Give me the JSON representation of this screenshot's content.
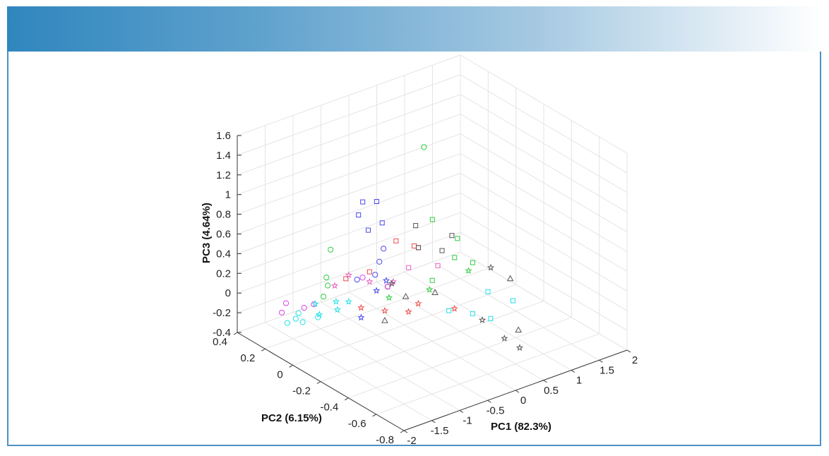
{
  "chart_data": {
    "type": "scatter3d",
    "title": "",
    "xlabel": "PC1 (82.3%)",
    "ylabel": "PC2 (6.15%)",
    "zlabel": "PC3 (4.64%)",
    "xlim": [
      -2,
      2
    ],
    "ylim": [
      -0.8,
      0.4
    ],
    "zlim": [
      -0.4,
      1.6
    ],
    "x_ticks": [
      "-2",
      "-1.5",
      "-1",
      "-0.5",
      "0",
      "0.5",
      "1",
      "1.5",
      "2"
    ],
    "y_ticks": [
      "-0.8",
      "-0.6",
      "-0.4",
      "-0.2",
      "0",
      "0.2",
      "0.4"
    ],
    "z_ticks": [
      "-0.4",
      "-0.2",
      "0",
      "0.2",
      "0.4",
      "0.6",
      "0.8",
      "1",
      "1.2",
      "1.4",
      "1.6"
    ],
    "grid": true,
    "colors": {
      "cyan": "#22e0e8",
      "magenta": "#e040e8",
      "green": "#2ecc40",
      "blue": "#4848ee",
      "red": "#f04848",
      "pink": "#e860c0",
      "gray": "#555555"
    },
    "groups": [
      {
        "marker": "circle",
        "color": "cyan",
        "points": [
          [
            -1.6,
            0.2,
            -0.22
          ],
          [
            -1.5,
            0.18,
            -0.18
          ],
          [
            -1.45,
            0.15,
            -0.2
          ],
          [
            -1.4,
            0.2,
            -0.16
          ],
          [
            -1.3,
            0.1,
            -0.14
          ]
        ]
      },
      {
        "marker": "circle",
        "color": "magenta",
        "points": [
          [
            -1.65,
            0.22,
            -0.12
          ],
          [
            -1.5,
            0.25,
            -0.08
          ],
          [
            -1.35,
            0.18,
            -0.1
          ],
          [
            -1.25,
            0.15,
            -0.06
          ],
          [
            -0.5,
            0.1,
            0.1
          ]
        ]
      },
      {
        "marker": "star",
        "color": "cyan",
        "points": [
          [
            -1.4,
            0.05,
            -0.05
          ],
          [
            -1.3,
            0.12,
            -0.02
          ],
          [
            -1.2,
            0.0,
            0.0
          ],
          [
            -1.1,
            0.05,
            0.02
          ],
          [
            -1.0,
            0.0,
            0.04
          ]
        ]
      },
      {
        "marker": "circle",
        "color": "green",
        "points": [
          [
            -1.2,
            0.1,
            0.05
          ],
          [
            -1.0,
            0.15,
            0.08
          ],
          [
            -0.9,
            0.2,
            0.1
          ],
          [
            -0.7,
            0.25,
            0.3
          ],
          [
            0.6,
            0.1,
            1.2
          ]
        ]
      },
      {
        "marker": "circle",
        "color": "blue",
        "points": [
          [
            -0.6,
            0.1,
            0.1
          ],
          [
            -0.4,
            0.05,
            0.15
          ],
          [
            -0.2,
            0.1,
            0.2
          ],
          [
            0.0,
            0.15,
            0.25
          ],
          [
            -0.3,
            0.0,
            0.05
          ]
        ]
      },
      {
        "marker": "square",
        "color": "blue",
        "points": [
          [
            -0.2,
            0.25,
            0.55
          ],
          [
            0.0,
            0.3,
            0.6
          ],
          [
            0.2,
            0.28,
            0.58
          ],
          [
            0.1,
            0.2,
            0.45
          ],
          [
            -0.1,
            0.22,
            0.4
          ]
        ]
      },
      {
        "marker": "square",
        "color": "red",
        "points": [
          [
            -0.8,
            0.1,
            0.15
          ],
          [
            -0.5,
            0.05,
            0.2
          ],
          [
            0.1,
            0.1,
            0.35
          ],
          [
            0.3,
            0.05,
            0.3
          ],
          [
            0.5,
            0.1,
            0.2
          ]
        ]
      },
      {
        "marker": "star",
        "color": "red",
        "points": [
          [
            -0.9,
            -0.05,
            0.0
          ],
          [
            -0.6,
            -0.1,
            -0.05
          ],
          [
            -0.3,
            -0.15,
            -0.08
          ],
          [
            0.0,
            -0.1,
            -0.1
          ],
          [
            0.4,
            -0.2,
            -0.15
          ]
        ]
      },
      {
        "marker": "star",
        "color": "pink",
        "points": [
          [
            -1.0,
            0.1,
            0.12
          ],
          [
            -0.7,
            0.12,
            0.15
          ],
          [
            -0.5,
            0.05,
            0.1
          ],
          [
            -0.2,
            0.0,
            0.08
          ]
        ]
      },
      {
        "marker": "star",
        "color": "blue",
        "points": [
          [
            -0.9,
            -0.05,
            -0.1
          ],
          [
            -0.5,
            0.0,
            0.05
          ],
          [
            -0.2,
            0.05,
            0.05
          ]
        ]
      },
      {
        "marker": "star",
        "color": "green",
        "points": [
          [
            -0.4,
            -0.05,
            0.0
          ],
          [
            0.2,
            -0.1,
            0.0
          ],
          [
            0.9,
            -0.1,
            0.05
          ]
        ]
      },
      {
        "marker": "square",
        "color": "green",
        "points": [
          [
            0.5,
            0.0,
            -0.05
          ],
          [
            1.0,
            0.2,
            0.3
          ],
          [
            1.2,
            0.1,
            0.15
          ],
          [
            1.1,
            -0.05,
            0.05
          ],
          [
            0.9,
            0.0,
            0.1
          ]
        ]
      },
      {
        "marker": "square",
        "color": "cyan",
        "points": [
          [
            0.3,
            -0.2,
            -0.15
          ],
          [
            0.6,
            -0.25,
            -0.2
          ],
          [
            1.0,
            -0.2,
            -0.1
          ],
          [
            1.2,
            -0.3,
            -0.15
          ],
          [
            0.8,
            -0.3,
            -0.25
          ]
        ]
      },
      {
        "marker": "square",
        "color": "gray",
        "points": [
          [
            0.5,
            0.1,
            0.2
          ],
          [
            0.8,
            0.05,
            0.15
          ],
          [
            1.1,
            0.1,
            0.2
          ],
          [
            0.7,
            0.2,
            0.3
          ]
        ]
      },
      {
        "marker": "square",
        "color": "pink",
        "points": [
          [
            -0.3,
            0.0,
            0.05
          ],
          [
            0.2,
            0.05,
            0.1
          ],
          [
            0.6,
            0.0,
            0.08
          ]
        ]
      },
      {
        "marker": "triangle",
        "color": "gray",
        "points": [
          [
            -0.6,
            -0.1,
            -0.15
          ],
          [
            0.3,
            -0.1,
            -0.05
          ],
          [
            1.4,
            -0.2,
            -0.05
          ],
          [
            0.8,
            -0.5,
            -0.2
          ],
          [
            -0.1,
            -0.05,
            -0.05
          ]
        ]
      },
      {
        "marker": "star",
        "color": "gray",
        "points": [
          [
            0.4,
            -0.4,
            -0.1
          ],
          [
            0.3,
            -0.6,
            -0.1
          ],
          [
            0.2,
            -0.75,
            -0.05
          ],
          [
            1.3,
            -0.1,
            0.0
          ],
          [
            -0.1,
            0.05,
            0.0
          ]
        ]
      }
    ]
  }
}
